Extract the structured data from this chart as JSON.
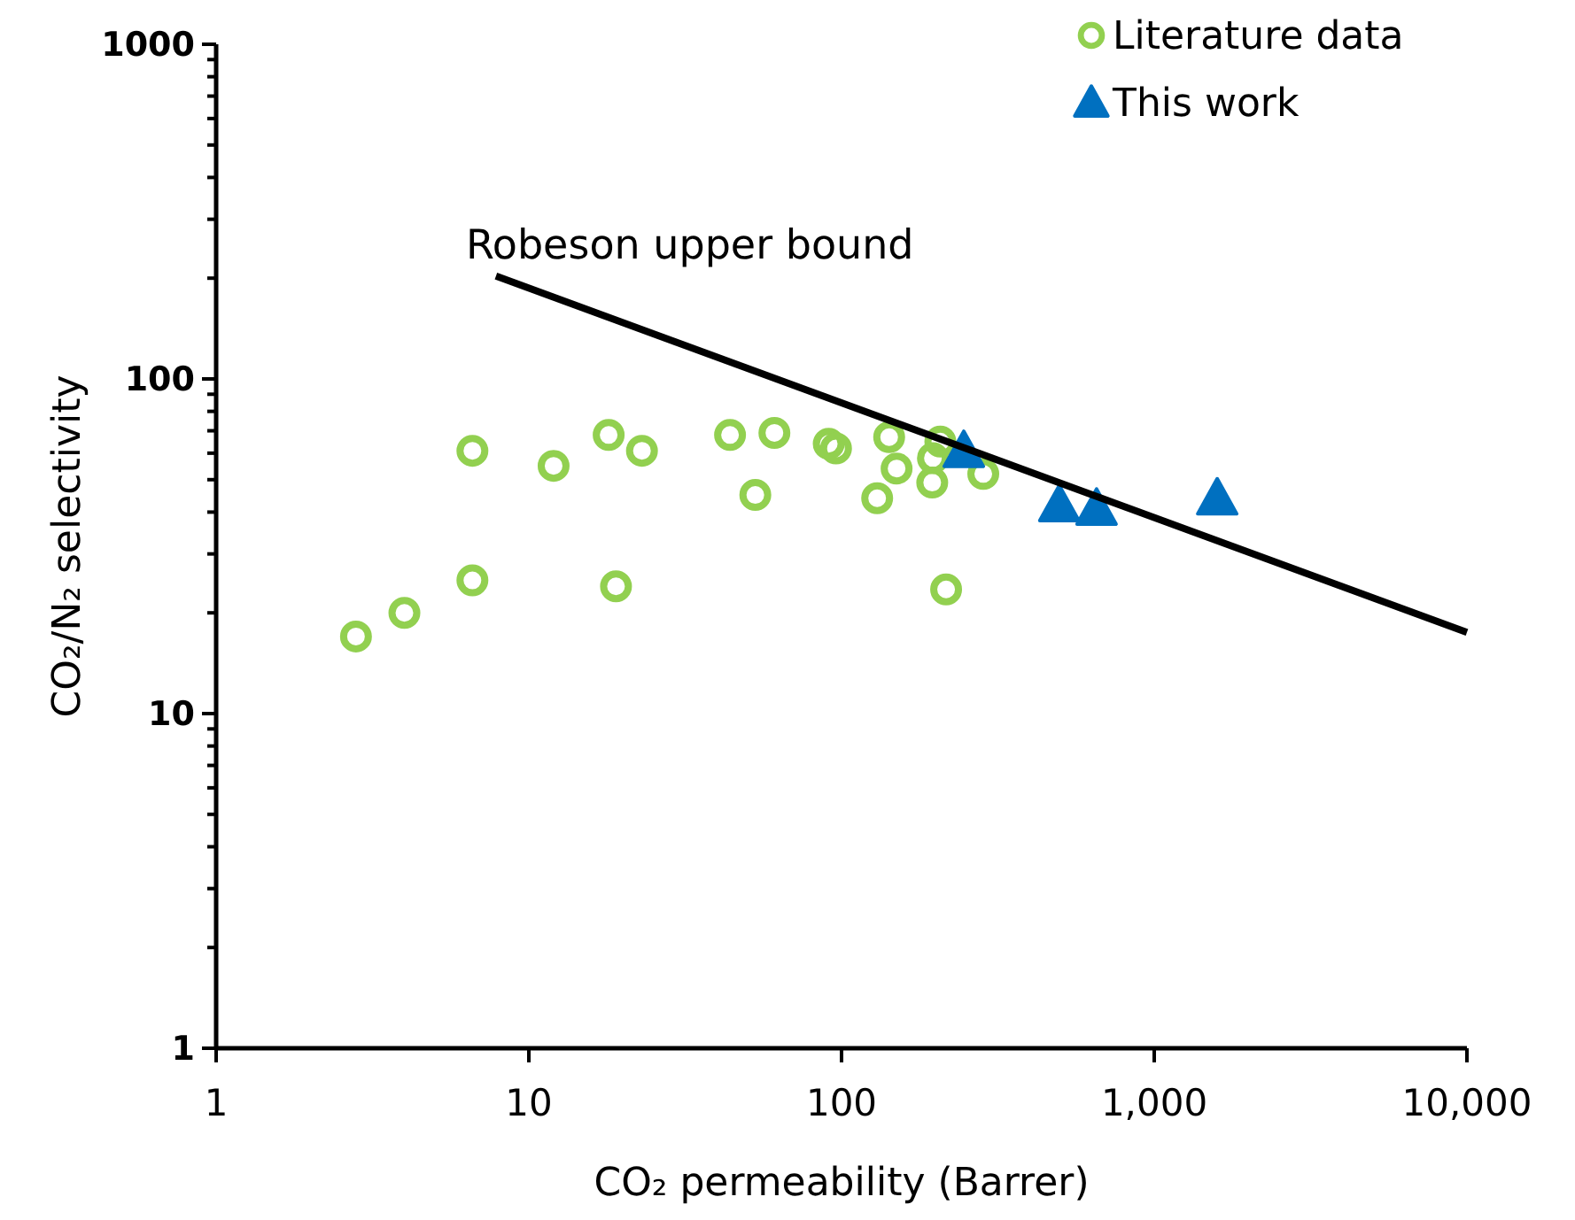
{
  "chart_data": {
    "type": "scatter",
    "xlabel": "CO₂ permeability (Barrer)",
    "ylabel": "CO₂/N₂ selectivity",
    "log": "xy",
    "legend": "top right",
    "grid": false,
    "xlim": [
      1,
      10000
    ],
    "xticks": [
      1,
      10,
      100,
      {
        "value": 1000,
        "label": "1,000"
      },
      {
        "value": 10000,
        "label": "10,000"
      }
    ],
    "ylim": [
      1,
      1000
    ],
    "yticks": [
      1,
      {
        "value": 2,
        "label": null
      },
      {
        "value": 3,
        "label": null
      },
      {
        "value": 4,
        "label": null
      },
      {
        "value": 5,
        "label": null
      },
      {
        "value": 6,
        "label": null
      },
      {
        "value": 7,
        "label": null
      },
      {
        "value": 8,
        "label": null
      },
      {
        "value": 9,
        "label": null
      },
      10,
      {
        "value": 20,
        "label": null
      },
      {
        "value": 30,
        "label": null
      },
      {
        "value": 40,
        "label": null
      },
      {
        "value": 50,
        "label": null
      },
      {
        "value": 60,
        "label": null
      },
      {
        "value": 70,
        "label": null
      },
      {
        "value": 80,
        "label": null
      },
      {
        "value": 90,
        "label": null
      },
      100,
      {
        "value": 200,
        "label": null
      },
      {
        "value": 300,
        "label": null
      },
      {
        "value": 400,
        "label": null
      },
      {
        "value": 500,
        "label": null
      },
      {
        "value": 600,
        "label": null
      },
      {
        "value": 700,
        "label": null
      },
      {
        "value": 800,
        "label": null
      },
      {
        "value": 900,
        "label": null
      },
      1000
    ],
    "series": [
      {
        "name": "Literature data",
        "marker": "circle",
        "color": "#92d050",
        "x": [
          2.8,
          4.0,
          6.6,
          6.6,
          12,
          18,
          19,
          23,
          44,
          53,
          61,
          91,
          96,
          142,
          150,
          130,
          195,
          196,
          207,
          284,
          216
        ],
        "values": [
          17,
          20,
          25,
          61,
          55,
          68,
          24,
          61,
          68,
          45,
          69,
          64,
          62,
          67,
          54,
          44,
          49,
          58,
          65,
          52,
          23.5
        ]
      },
      {
        "name": "This work",
        "marker": "triangle",
        "color": "#0070c0",
        "x": [
          246,
          497,
          654,
          1590
        ],
        "values": [
          61,
          42,
          41,
          44
        ]
      },
      {
        "name": "Robeson upper bound",
        "type": "line",
        "marker": "none",
        "line_style": "solid",
        "color": "#000000",
        "x": [
          7.85,
          10000
        ],
        "values": [
          203,
          17.5
        ]
      }
    ]
  }
}
